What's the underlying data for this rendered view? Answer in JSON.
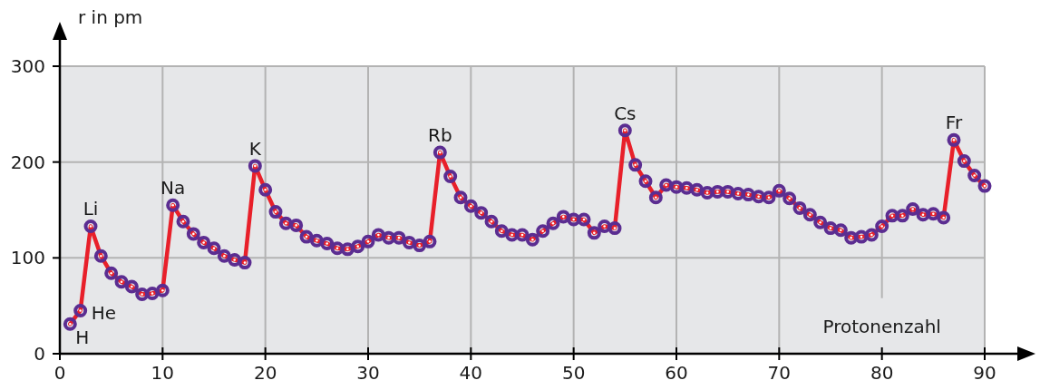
{
  "chart_data": {
    "type": "line",
    "ylabel": "r in pm",
    "xlabel": "Protonenzahl",
    "x": [
      1,
      2,
      3,
      4,
      5,
      6,
      7,
      8,
      9,
      10,
      11,
      12,
      13,
      14,
      15,
      16,
      17,
      18,
      19,
      20,
      21,
      22,
      23,
      24,
      25,
      26,
      27,
      28,
      29,
      30,
      31,
      32,
      33,
      34,
      35,
      36,
      37,
      38,
      39,
      40,
      41,
      42,
      43,
      44,
      45,
      46,
      47,
      48,
      49,
      50,
      51,
      52,
      53,
      54,
      55,
      56,
      57,
      58,
      59,
      60,
      61,
      62,
      63,
      64,
      65,
      66,
      67,
      68,
      69,
      70,
      71,
      72,
      73,
      74,
      75,
      76,
      77,
      78,
      79,
      80,
      81,
      82,
      83,
      84,
      85,
      86,
      87,
      88,
      89,
      90
    ],
    "series": [
      {
        "color": "#e8202a",
        "values": [
          31,
          45,
          133,
          102,
          84,
          75,
          70,
          62,
          63,
          66,
          155,
          138,
          125,
          116,
          110,
          102,
          98,
          95,
          196,
          171,
          148,
          136,
          134,
          122,
          118,
          115,
          110,
          109,
          112,
          117,
          124,
          121,
          121,
          116,
          113,
          117,
          210,
          185,
          163,
          154,
          147,
          138,
          128,
          124,
          124,
          119,
          128,
          136,
          143,
          140,
          140,
          126,
          133,
          131,
          233,
          197,
          180,
          163,
          176,
          174,
          173,
          171,
          168,
          169,
          169,
          167,
          166,
          164,
          163,
          170,
          162,
          152,
          145,
          137,
          131,
          129,
          121,
          122,
          124,
          133,
          144,
          144,
          151,
          145,
          146,
          142,
          223,
          201,
          186,
          175
        ]
      }
    ],
    "xlim": [
      0,
      90
    ],
    "ylim": [
      0,
      300
    ],
    "xticks": [
      0,
      10,
      20,
      30,
      40,
      50,
      60,
      70,
      80,
      90
    ],
    "yticks": [
      0,
      100,
      200,
      300
    ],
    "grid": true,
    "marker": "circle",
    "line_style": "solid",
    "annotations": [
      {
        "text": "H",
        "x": 1,
        "y": 31
      },
      {
        "text": "He",
        "x": 2,
        "y": 45
      },
      {
        "text": "Li",
        "x": 3,
        "y": 133
      },
      {
        "text": "Na",
        "x": 11,
        "y": 155
      },
      {
        "text": "K",
        "x": 19,
        "y": 196
      },
      {
        "text": "Rb",
        "x": 37,
        "y": 210
      },
      {
        "text": "Cs",
        "x": 55,
        "y": 233
      },
      {
        "text": "Fr",
        "x": 87,
        "y": 223
      }
    ]
  }
}
